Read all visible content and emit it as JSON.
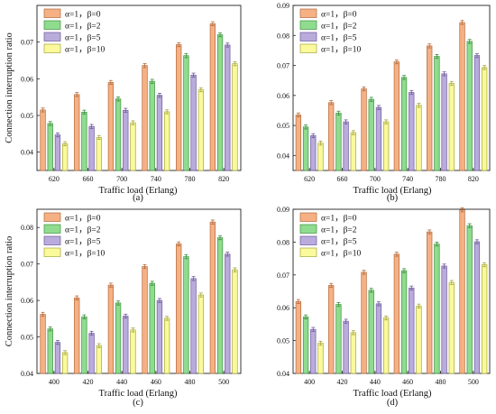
{
  "colors": {
    "series": [
      "#f5b184",
      "#8fdc8f",
      "#b9abdb",
      "#fafa9c"
    ],
    "edges": [
      "#b36a3d",
      "#3f8f3f",
      "#6e5a9c",
      "#a6a63a"
    ],
    "axis": "#222222"
  },
  "chart_data": [
    {
      "type": "bar",
      "panel_label": "(a)",
      "xlabel": "Traffic load (Erlang)",
      "ylabel": "Connection interruption ratio",
      "categories": [
        "620",
        "660",
        "700",
        "740",
        "780",
        "820"
      ],
      "ylim": [
        0.035,
        0.08
      ],
      "yticks": [
        "0.04",
        "0.05",
        "0.06",
        "0.07"
      ],
      "ytick_values": [
        0.04,
        0.05,
        0.06,
        0.07
      ],
      "legend_placement": "top-left",
      "error_bars": true,
      "series": [
        {
          "name": "α=1，β=0",
          "values": [
            0.0515,
            0.0557,
            0.059,
            0.0636,
            0.0693,
            0.075
          ]
        },
        {
          "name": "α=1，β=2",
          "values": [
            0.0478,
            0.0509,
            0.0545,
            0.0593,
            0.0663,
            0.072
          ]
        },
        {
          "name": "α=1，β=5",
          "values": [
            0.0447,
            0.047,
            0.0514,
            0.0555,
            0.061,
            0.0692
          ]
        },
        {
          "name": "α=1，β=10",
          "values": [
            0.0423,
            0.044,
            0.048,
            0.051,
            0.057,
            0.0641
          ]
        }
      ]
    },
    {
      "type": "bar",
      "panel_label": "(b)",
      "xlabel": "Traffic load (Erlang)",
      "ylabel": "",
      "categories": [
        "620",
        "660",
        "700",
        "740",
        "780",
        "820"
      ],
      "ylim": [
        0.035,
        0.09
      ],
      "yticks": [
        "0.04",
        "0.05",
        "0.06",
        "0.07",
        "0.08",
        "0.09"
      ],
      "ytick_values": [
        0.04,
        0.05,
        0.06,
        0.07,
        0.08,
        0.09
      ],
      "legend_placement": "top-left",
      "error_bars": true,
      "series": [
        {
          "name": "α=1，β=0",
          "values": [
            0.0535,
            0.0576,
            0.0622,
            0.0712,
            0.0765,
            0.0843
          ]
        },
        {
          "name": "α=1，β=2",
          "values": [
            0.0495,
            0.0541,
            0.0587,
            0.066,
            0.073,
            0.078
          ]
        },
        {
          "name": "α=1，β=5",
          "values": [
            0.0466,
            0.0512,
            0.056,
            0.061,
            0.0672,
            0.0733
          ]
        },
        {
          "name": "α=1，β=10",
          "values": [
            0.0441,
            0.0476,
            0.0512,
            0.0567,
            0.064,
            0.0693
          ]
        }
      ]
    },
    {
      "type": "bar",
      "panel_label": "(c)",
      "xlabel": "Traffic load (Erlang)",
      "ylabel": "Connection interruption ratio",
      "categories": [
        "400",
        "420",
        "440",
        "460",
        "480",
        "500"
      ],
      "ylim": [
        0.04,
        0.085
      ],
      "yticks": [
        "0.04",
        "0.05",
        "0.06",
        "0.07",
        "0.08"
      ],
      "ytick_values": [
        0.04,
        0.05,
        0.06,
        0.07,
        0.08
      ],
      "legend_placement": "top-left",
      "error_bars": true,
      "series": [
        {
          "name": "α=1，β=0",
          "values": [
            0.0562,
            0.0607,
            0.0642,
            0.0693,
            0.0755,
            0.0815
          ]
        },
        {
          "name": "α=1，β=2",
          "values": [
            0.0522,
            0.0555,
            0.0593,
            0.0647,
            0.072,
            0.0772
          ]
        },
        {
          "name": "α=1，β=5",
          "values": [
            0.0485,
            0.051,
            0.0557,
            0.06,
            0.066,
            0.0727
          ]
        },
        {
          "name": "α=1，β=10",
          "values": [
            0.0457,
            0.0476,
            0.0519,
            0.0551,
            0.0615,
            0.0684
          ]
        }
      ]
    },
    {
      "type": "bar",
      "panel_label": "(d)",
      "xlabel": "Traffic load (Erlang)",
      "ylabel": "",
      "categories": [
        "400",
        "420",
        "440",
        "460",
        "480",
        "500"
      ],
      "ylim": [
        0.04,
        0.09
      ],
      "yticks": [
        "0.04",
        "0.05",
        "0.06",
        "0.07",
        "0.08",
        "0.09"
      ],
      "ytick_values": [
        0.04,
        0.05,
        0.06,
        0.07,
        0.08,
        0.09
      ],
      "legend_placement": "top-left",
      "error_bars": true,
      "series": [
        {
          "name": "α=1，β=0",
          "values": [
            0.0619,
            0.0668,
            0.0708,
            0.0763,
            0.0831,
            0.0898
          ]
        },
        {
          "name": "α=1，β=2",
          "values": [
            0.0572,
            0.061,
            0.0653,
            0.0713,
            0.0794,
            0.085
          ]
        },
        {
          "name": "α=1，β=5",
          "values": [
            0.0534,
            0.0559,
            0.0612,
            0.066,
            0.0727,
            0.0801
          ]
        },
        {
          "name": "α=1，β=10",
          "values": [
            0.0492,
            0.0524,
            0.0569,
            0.0605,
            0.0677,
            0.0731
          ]
        }
      ]
    }
  ]
}
